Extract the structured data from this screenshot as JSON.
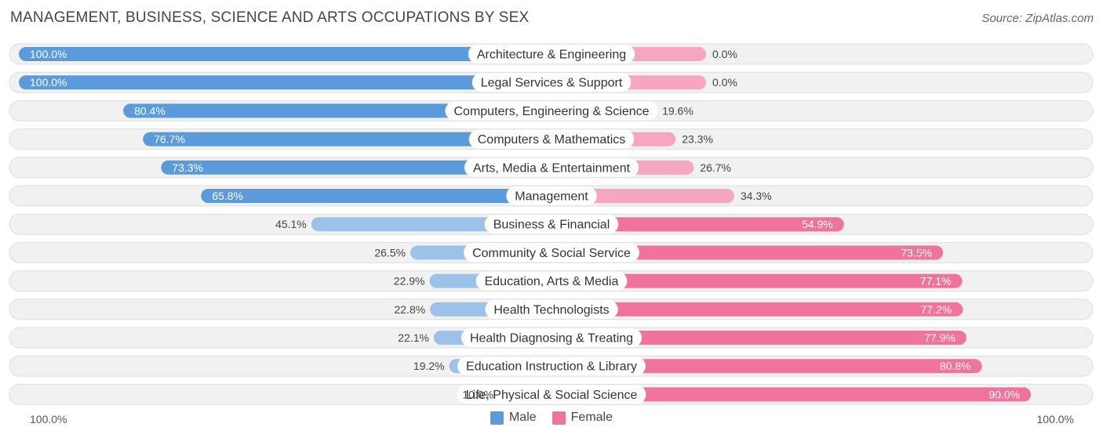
{
  "header": {
    "title": "MANAGEMENT, BUSINESS, SCIENCE AND ARTS OCCUPATIONS BY SEX",
    "source": "Source: ZipAtlas.com"
  },
  "colors": {
    "male_strong": "#5b9bdc",
    "male_light": "#9dc2ea",
    "female_strong": "#f0739b",
    "female_light": "#f6a6c0"
  },
  "legend": {
    "male": "Male",
    "female": "Female"
  },
  "axis": {
    "left_label": "100.0%",
    "right_label": "100.0%"
  },
  "chart_data": {
    "type": "bar",
    "orientation": "horizontal-diverging",
    "title": "MANAGEMENT, BUSINESS, SCIENCE AND ARTS OCCUPATIONS BY SEX",
    "xlim": [
      -100,
      100
    ],
    "categories": [
      "Architecture & Engineering",
      "Legal Services & Support",
      "Computers, Engineering & Science",
      "Computers & Mathematics",
      "Arts, Media & Entertainment",
      "Management",
      "Business & Financial",
      "Community & Social Service",
      "Education, Arts & Media",
      "Health Technologists",
      "Health Diagnosing & Treating",
      "Education Instruction & Library",
      "Life, Physical & Social Science"
    ],
    "series": [
      {
        "name": "Male",
        "values": [
          100.0,
          100.0,
          80.4,
          76.7,
          73.3,
          65.8,
          45.1,
          26.5,
          22.9,
          22.8,
          22.1,
          19.2,
          10.0
        ],
        "labels": [
          "100.0%",
          "100.0%",
          "80.4%",
          "76.7%",
          "73.3%",
          "65.8%",
          "45.1%",
          "26.5%",
          "22.9%",
          "22.8%",
          "22.1%",
          "19.2%",
          "10.0%"
        ]
      },
      {
        "name": "Female",
        "values": [
          0.0,
          0.0,
          19.6,
          23.3,
          26.7,
          34.3,
          54.9,
          73.5,
          77.1,
          77.2,
          77.9,
          80.8,
          90.0
        ],
        "labels": [
          "0.0%",
          "0.0%",
          "19.6%",
          "23.3%",
          "26.7%",
          "34.3%",
          "54.9%",
          "73.5%",
          "77.1%",
          "77.2%",
          "77.9%",
          "80.8%",
          "90.0%"
        ]
      }
    ]
  }
}
